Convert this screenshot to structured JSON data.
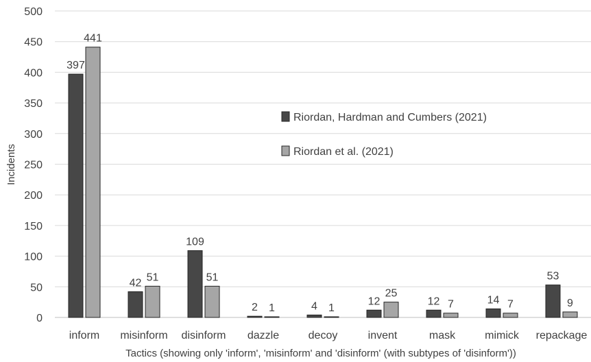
{
  "chart_data": {
    "type": "bar",
    "title": "",
    "xlabel": "Tactics (showing only 'inform', 'misinform' and 'disinform' (with subtypes of 'disinform'))",
    "ylabel": "Incidents",
    "ylim": [
      0,
      500
    ],
    "yticks": [
      0,
      50,
      100,
      150,
      200,
      250,
      300,
      350,
      400,
      450,
      500
    ],
    "grid": true,
    "legend_position": "center-right",
    "categories": [
      "inform",
      "misinform",
      "disinform",
      "dazzle",
      "decoy",
      "invent",
      "mask",
      "mimick",
      "repackage"
    ],
    "series": [
      {
        "name": "Riordan, Hardman and Cumbers (2021)",
        "color": "#474747",
        "values": [
          397,
          42,
          109,
          2,
          4,
          12,
          12,
          14,
          53
        ]
      },
      {
        "name": "Riordan et al. (2021)",
        "color": "#a6a6a6",
        "values": [
          441,
          51,
          51,
          1,
          1,
          25,
          7,
          7,
          9
        ]
      }
    ]
  }
}
